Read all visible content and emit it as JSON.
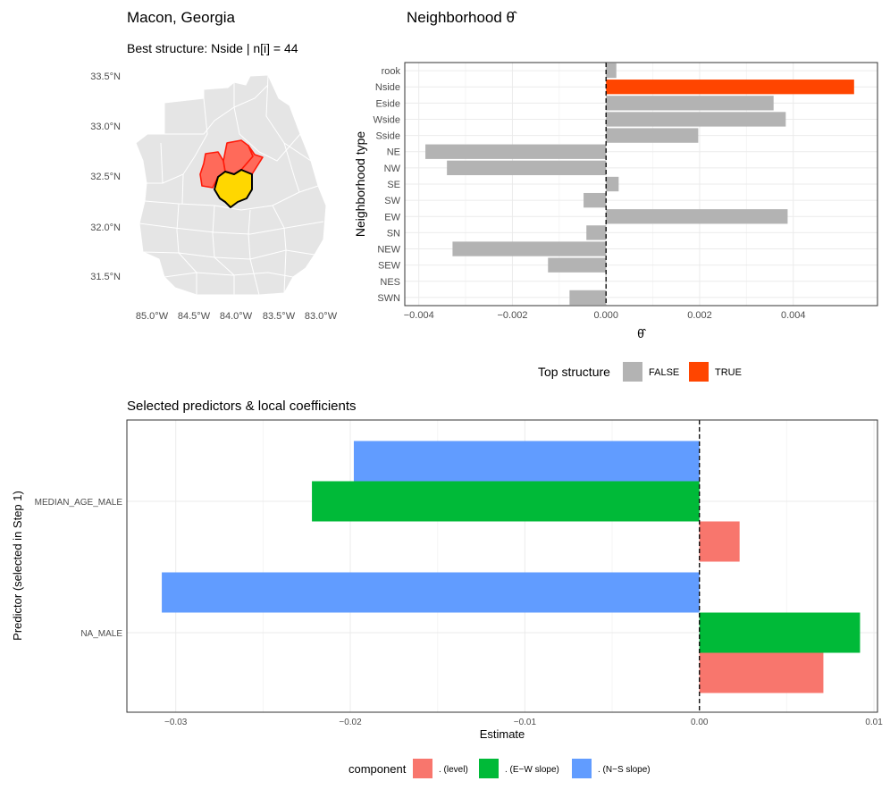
{
  "map": {
    "title": "Macon, Georgia",
    "subtitle": "Best structure: Nside   |   n[i] = 44",
    "lat_labels": [
      "33.5°N",
      "33.0°N",
      "32.5°N",
      "32.0°N",
      "31.5°N"
    ],
    "lon_labels": [
      "85.0°W",
      "84.5°W",
      "84.0°W",
      "83.5°W",
      "83.0°W"
    ],
    "colors": {
      "background_counties": "#e5e5e5",
      "neighbors": "#ff6a5a",
      "neighbors_stroke": "#ff1a0a",
      "focal": "#ffd700",
      "focal_stroke": "#000000"
    }
  },
  "chart_data": [
    {
      "type": "bar",
      "orientation": "horizontal",
      "title": "Neighborhood θ̂",
      "xlabel": "θ̂",
      "ylabel": "Neighborhood type",
      "categories": [
        "rook",
        "Nside",
        "Eside",
        "Wside",
        "Sside",
        "NE",
        "NW",
        "SE",
        "SW",
        "EW",
        "SN",
        "NEW",
        "SEW",
        "NES",
        "SWN"
      ],
      "values": [
        0.00022,
        0.0053,
        0.00358,
        0.00384,
        0.00197,
        -0.00386,
        -0.0034,
        0.00027,
        -0.00048,
        0.00388,
        -0.00042,
        -0.00328,
        -0.00124,
        -1e-05,
        -0.00078
      ],
      "top_structure": [
        false,
        true,
        false,
        false,
        false,
        false,
        false,
        false,
        false,
        false,
        false,
        false,
        false,
        false,
        false
      ],
      "xlim": [
        -0.0043,
        0.0058
      ],
      "xticks": [
        -0.004,
        -0.002,
        0,
        0.002,
        0.004
      ],
      "xtick_labels": [
        "−0.004",
        "−0.002",
        "0.000",
        "0.002",
        "0.004"
      ],
      "legend": {
        "title": "Top structure",
        "entries": [
          {
            "label": "FALSE",
            "color": "#b3b3b3"
          },
          {
            "label": "TRUE",
            "color": "#ff4500"
          }
        ],
        "position": "bottom"
      }
    },
    {
      "type": "bar",
      "orientation": "horizontal",
      "title": "Selected predictors & local coefficients",
      "xlabel": "Estimate",
      "ylabel": "Predictor (selected in Step 1)",
      "categories": [
        "MEDIAN_AGE_MALE",
        "NA_MALE"
      ],
      "series": [
        {
          "name": ". (level)",
          "color": "#f8766d",
          "values": [
            0.0023,
            0.0071
          ]
        },
        {
          "name": ". (E−W slope)",
          "color": "#00ba38",
          "values": [
            -0.0222,
            0.0092
          ]
        },
        {
          "name": ". (N−S slope)",
          "color": "#619cff",
          "values": [
            -0.0198,
            -0.0308
          ]
        }
      ],
      "xlim": [
        -0.0328,
        0.0102
      ],
      "xticks": [
        -0.03,
        -0.02,
        -0.01,
        0,
        0.01
      ],
      "xtick_labels": [
        "−0.03",
        "−0.02",
        "−0.01",
        "0.00",
        "0.01"
      ],
      "legend": {
        "title": "component",
        "position": "bottom"
      }
    }
  ]
}
